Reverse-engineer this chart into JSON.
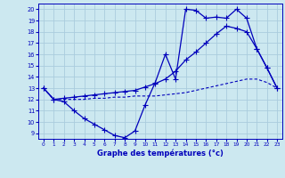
{
  "title": "Graphe des températures (°c)",
  "bg_color": "#cce8f0",
  "grid_color": "#aaccdd",
  "line_color": "#0000bb",
  "xlim": [
    -0.5,
    23.5
  ],
  "ylim": [
    8.5,
    20.5
  ],
  "yticks": [
    9,
    10,
    11,
    12,
    13,
    14,
    15,
    16,
    17,
    18,
    19,
    20
  ],
  "xticks": [
    0,
    1,
    2,
    3,
    4,
    5,
    6,
    7,
    8,
    9,
    10,
    11,
    12,
    13,
    14,
    15,
    16,
    17,
    18,
    19,
    20,
    21,
    22,
    23
  ],
  "series1_y": [
    13.0,
    12.0,
    11.8,
    11.0,
    10.3,
    9.8,
    9.3,
    8.8,
    8.6,
    9.2,
    11.5,
    13.5,
    16.0,
    13.8,
    20.0,
    19.9,
    19.2,
    19.3,
    19.2,
    20.0,
    19.2,
    16.5,
    14.8,
    13.0
  ],
  "series2_y": [
    13.0,
    12.0,
    12.1,
    12.2,
    12.3,
    12.4,
    12.5,
    12.6,
    12.7,
    12.8,
    13.1,
    13.4,
    13.8,
    14.5,
    15.5,
    16.2,
    17.0,
    17.8,
    18.5,
    18.3,
    18.0,
    16.5,
    14.8,
    13.0
  ],
  "series3_y": [
    13.0,
    12.0,
    12.0,
    12.0,
    12.0,
    12.1,
    12.1,
    12.2,
    12.2,
    12.3,
    12.3,
    12.3,
    12.4,
    12.5,
    12.6,
    12.8,
    13.0,
    13.2,
    13.4,
    13.6,
    13.8,
    13.8,
    13.5,
    13.0
  ]
}
